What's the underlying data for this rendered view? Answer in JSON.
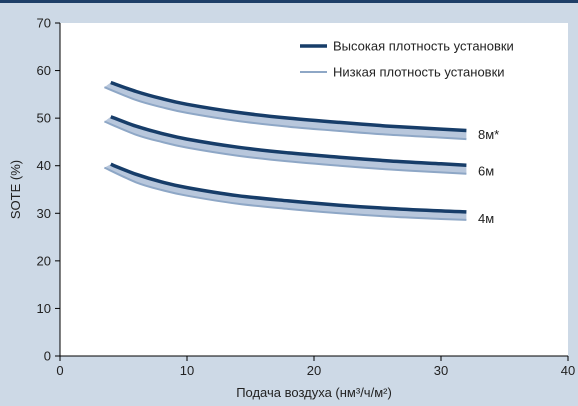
{
  "chart_data": {
    "type": "line",
    "xlabel": "Подача воздуха (нм³/ч/м²)",
    "ylabel": "SOTE (%)",
    "xlim": [
      0,
      40
    ],
    "ylim": [
      0,
      70
    ],
    "xticks": [
      "0",
      "10",
      "20",
      "30",
      "40"
    ],
    "yticks": [
      "0",
      "10",
      "20",
      "30",
      "40",
      "50",
      "60",
      "70"
    ],
    "grid": false,
    "legend_position": "top-right",
    "legend": [
      {
        "label": "Высокая плотность установки",
        "color": "#173d69"
      },
      {
        "label": "Низкая плотность установки",
        "color": "#8ea7c6"
      }
    ],
    "curves": [
      {
        "label": "8м*",
        "high": {
          "x": [
            4,
            6,
            8,
            10,
            14,
            18,
            22,
            26,
            30,
            32
          ],
          "y": [
            57.5,
            55.6,
            54.1,
            52.9,
            51.2,
            50.0,
            49.1,
            48.3,
            47.7,
            47.4
          ]
        },
        "low": {
          "x": [
            3.5,
            6,
            8,
            10,
            14,
            18,
            22,
            26,
            30,
            32
          ],
          "y": [
            56.5,
            53.8,
            52.3,
            51.1,
            49.4,
            48.2,
            47.3,
            46.5,
            45.9,
            45.6
          ]
        }
      },
      {
        "label": "6м",
        "high": {
          "x": [
            4,
            6,
            8,
            10,
            14,
            18,
            22,
            26,
            30,
            32
          ],
          "y": [
            50.3,
            48.3,
            46.8,
            45.6,
            43.9,
            42.7,
            41.8,
            41.0,
            40.4,
            40.1
          ]
        },
        "low": {
          "x": [
            3.5,
            6,
            8,
            10,
            14,
            18,
            22,
            26,
            30,
            32
          ],
          "y": [
            49.3,
            46.5,
            45.0,
            43.8,
            42.1,
            40.9,
            40.0,
            39.2,
            38.6,
            38.3
          ]
        }
      },
      {
        "label": "4м",
        "high": {
          "x": [
            4,
            6,
            8,
            10,
            14,
            18,
            22,
            26,
            30,
            32
          ],
          "y": [
            40.3,
            38.2,
            36.6,
            35.4,
            33.7,
            32.6,
            31.7,
            31.0,
            30.5,
            30.3
          ]
        },
        "low": {
          "x": [
            3.5,
            6,
            8,
            10,
            14,
            18,
            22,
            26,
            30,
            32
          ],
          "y": [
            39.6,
            36.5,
            34.9,
            33.7,
            32.0,
            30.9,
            30.0,
            29.3,
            28.8,
            28.6
          ]
        }
      }
    ]
  }
}
